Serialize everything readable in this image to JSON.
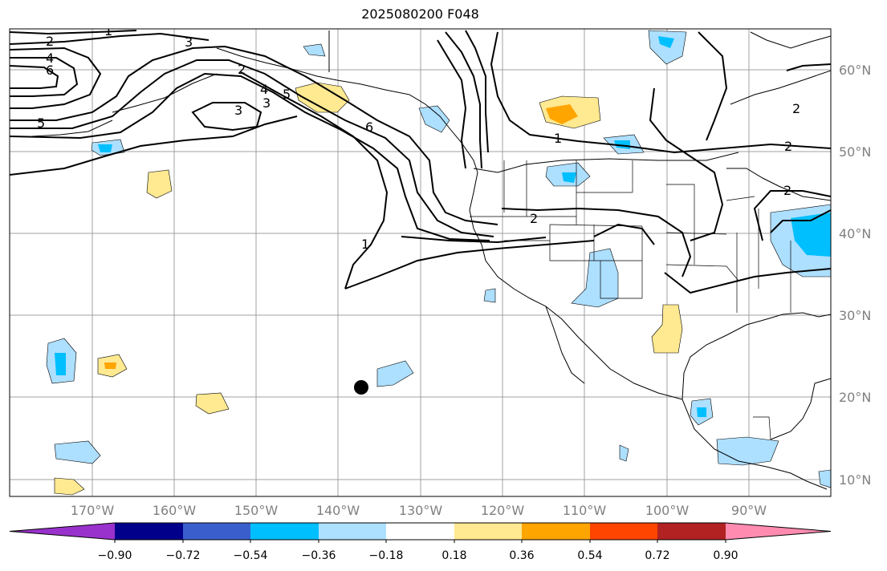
{
  "title": "2025080200 F048",
  "lat_labels": [
    "60°N",
    "50°N",
    "40°N",
    "30°N",
    "20°N",
    "10°N"
  ],
  "lon_labels": [
    "170°W",
    "160°W",
    "150°W",
    "140°W",
    "130°W",
    "120°W",
    "110°W",
    "100°W",
    "90°W"
  ],
  "colorbar": {
    "ticks": [
      "−0.90",
      "−0.72",
      "−0.54",
      "−0.36",
      "−0.18",
      "0.18",
      "0.36",
      "0.54",
      "0.72",
      "0.90"
    ],
    "colors": [
      "#9932CC",
      "#00008B",
      "#3A5FCD",
      "#00BFFF",
      "#ADDFFF",
      "#FFFFFF",
      "#FFE991",
      "#FFA500",
      "#FF4500",
      "#B22222",
      "#FF8CB0"
    ]
  },
  "contour_labels": [
    "1",
    "2",
    "3",
    "4",
    "6",
    "5",
    "2",
    "3",
    "3",
    "4",
    "5",
    "6",
    "1",
    "2",
    "1",
    "2",
    "2",
    "2"
  ],
  "storm_marker": "storm-center"
}
